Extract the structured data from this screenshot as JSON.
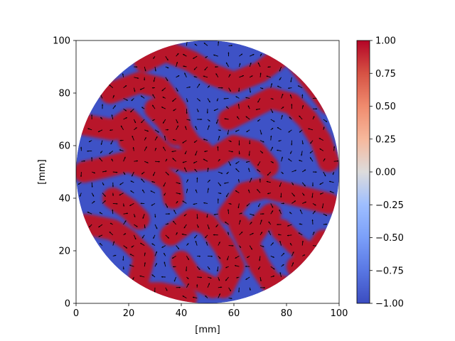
{
  "chart_data": {
    "type": "heatmap",
    "subtype": "circular-domain field with quiver arrows",
    "title": "",
    "xlabel": "[mm]",
    "ylabel": "[mm]",
    "xlim": [
      0,
      100
    ],
    "ylim": [
      0,
      100
    ],
    "xticks": [
      "0",
      "20",
      "40",
      "60",
      "80",
      "100"
    ],
    "yticks": [
      "0",
      "20",
      "40",
      "60",
      "80",
      "100"
    ],
    "domain": {
      "shape": "circle",
      "center": [
        50,
        50
      ],
      "radius": 50
    },
    "colormap": "coolwarm",
    "colorbar": {
      "range": [
        -1.0,
        1.0
      ],
      "ticks": [
        "1.00",
        "0.75",
        "0.50",
        "0.25",
        "0.00",
        "−0.25",
        "−0.50",
        "−0.75",
        "−1.00"
      ]
    },
    "field_description": "labyrinthine stripe pattern of values near +1 (red) and -1 (blue)",
    "stripe_centerlines": [
      [
        [
          3,
          68
        ],
        [
          14,
          66
        ],
        [
          20,
          70
        ],
        [
          26,
          64
        ],
        [
          34,
          56
        ],
        [
          42,
          54
        ],
        [
          52,
          55
        ],
        [
          60,
          60
        ],
        [
          68,
          58
        ],
        [
          73,
          52
        ]
      ],
      [
        [
          13,
          80
        ],
        [
          24,
          84
        ],
        [
          32,
          82
        ],
        [
          38,
          74
        ],
        [
          40,
          66
        ],
        [
          44,
          60
        ],
        [
          48,
          58
        ]
      ],
      [
        [
          3,
          50
        ],
        [
          12,
          52
        ],
        [
          20,
          54
        ],
        [
          30,
          50
        ],
        [
          36,
          46
        ],
        [
          37,
          40
        ]
      ],
      [
        [
          26,
          92
        ],
        [
          34,
          96
        ],
        [
          44,
          92
        ],
        [
          52,
          87
        ],
        [
          60,
          84
        ],
        [
          70,
          88
        ],
        [
          78,
          94
        ]
      ],
      [
        [
          58,
          70
        ],
        [
          66,
          74
        ],
        [
          74,
          78
        ],
        [
          82,
          76
        ],
        [
          88,
          70
        ],
        [
          93,
          62
        ],
        [
          96,
          54
        ]
      ],
      [
        [
          30,
          74
        ],
        [
          34,
          70
        ],
        [
          38,
          64
        ]
      ],
      [
        [
          84,
          92
        ],
        [
          90,
          84
        ],
        [
          96,
          76
        ]
      ],
      [
        [
          4,
          30
        ],
        [
          14,
          28
        ],
        [
          20,
          24
        ],
        [
          26,
          18
        ],
        [
          24,
          10
        ]
      ],
      [
        [
          14,
          40
        ],
        [
          20,
          36
        ],
        [
          24,
          32
        ]
      ],
      [
        [
          36,
          26
        ],
        [
          44,
          32
        ],
        [
          50,
          30
        ],
        [
          56,
          22
        ],
        [
          60,
          14
        ],
        [
          56,
          6
        ]
      ],
      [
        [
          40,
          16
        ],
        [
          44,
          10
        ],
        [
          52,
          6
        ]
      ],
      [
        [
          58,
          34
        ],
        [
          64,
          42
        ],
        [
          72,
          44
        ],
        [
          80,
          42
        ],
        [
          88,
          40
        ],
        [
          96,
          38
        ]
      ],
      [
        [
          66,
          24
        ],
        [
          70,
          30
        ],
        [
          74,
          34
        ]
      ],
      [
        [
          78,
          28
        ],
        [
          84,
          22
        ],
        [
          90,
          18
        ],
        [
          94,
          24
        ]
      ],
      [
        [
          84,
          14
        ],
        [
          88,
          8
        ]
      ],
      [
        [
          24,
          4
        ],
        [
          32,
          4
        ],
        [
          42,
          2
        ]
      ],
      [
        [
          62,
          30
        ],
        [
          66,
          22
        ],
        [
          70,
          14
        ],
        [
          74,
          8
        ],
        [
          80,
          6
        ]
      ],
      [
        [
          20,
          62
        ],
        [
          26,
          60
        ],
        [
          30,
          56
        ]
      ]
    ]
  }
}
